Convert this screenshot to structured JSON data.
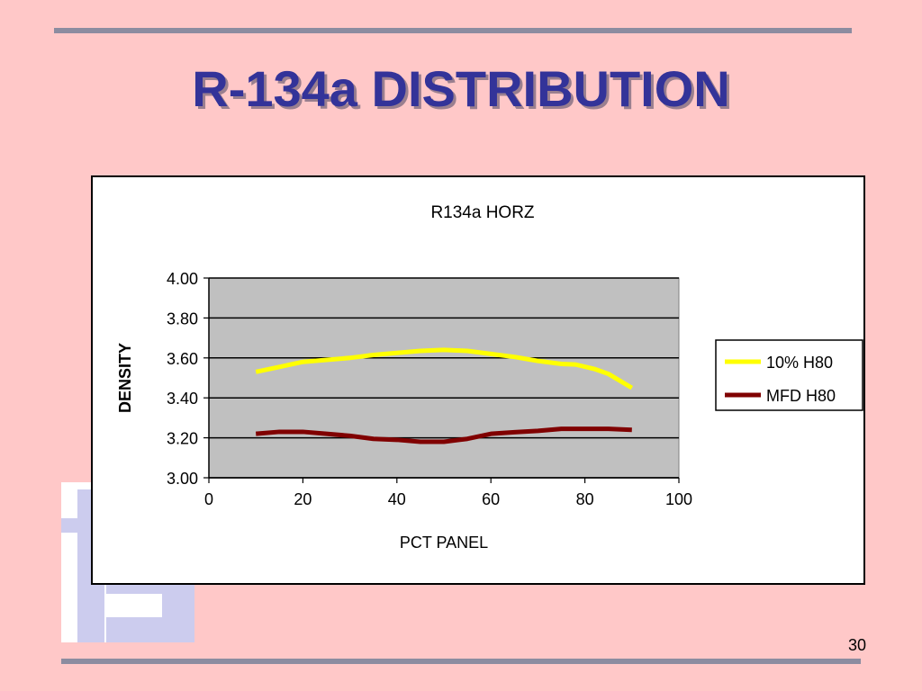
{
  "slide": {
    "title": "R-134a DISTRIBUTION",
    "page_number": "30"
  },
  "colors": {
    "background": "#ffc8c8",
    "title": "#333399",
    "plot_area": "#c0c0c0",
    "series_1": "#ffff00",
    "series_2": "#800000"
  },
  "chart_data": {
    "type": "line",
    "title": "R134a HORZ",
    "xlabel": "PCT PANEL",
    "ylabel": "DENSITY",
    "xlim": [
      0,
      100
    ],
    "ylim": [
      3.0,
      4.0
    ],
    "x_ticks": [
      "0",
      "20",
      "40",
      "60",
      "80",
      "100"
    ],
    "y_ticks": [
      "4.00",
      "3.80",
      "3.60",
      "3.40",
      "3.20",
      "3.00"
    ],
    "grid": "horizontal",
    "legend_position": "right",
    "series": [
      {
        "name": "10% H80",
        "color": "#ffff00",
        "x": [
          10,
          15,
          20,
          25,
          30,
          35,
          40,
          45,
          50,
          55,
          60,
          65,
          70,
          75,
          78,
          82,
          85,
          90
        ],
        "y": [
          3.53,
          3.555,
          3.58,
          3.59,
          3.6,
          3.615,
          3.625,
          3.635,
          3.64,
          3.635,
          3.62,
          3.605,
          3.585,
          3.57,
          3.567,
          3.545,
          3.52,
          3.45
        ]
      },
      {
        "name": "MFD H80",
        "color": "#800000",
        "x": [
          10,
          15,
          20,
          25,
          30,
          35,
          40,
          45,
          50,
          55,
          60,
          65,
          70,
          75,
          80,
          85,
          90
        ],
        "y": [
          3.22,
          3.23,
          3.23,
          3.22,
          3.21,
          3.195,
          3.19,
          3.18,
          3.18,
          3.195,
          3.22,
          3.228,
          3.235,
          3.245,
          3.245,
          3.245,
          3.24
        ]
      }
    ]
  }
}
